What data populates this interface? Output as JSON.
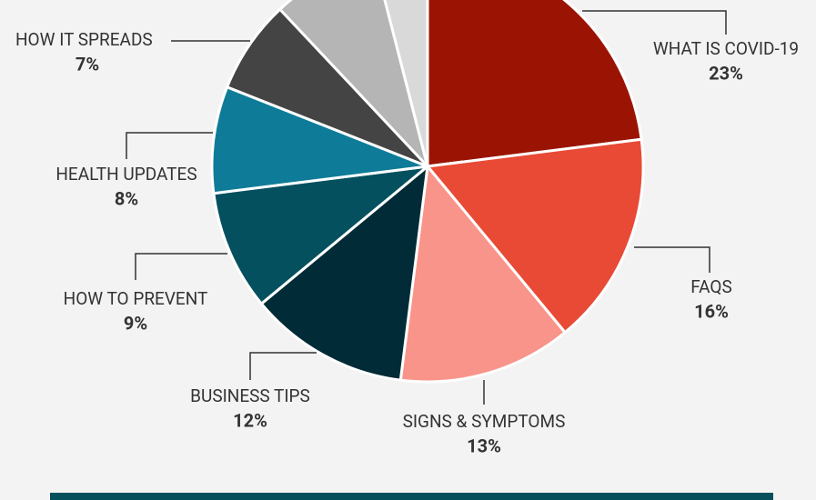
{
  "chart_data": {
    "type": "pie",
    "categories": [
      "WHAT IS COVID-19",
      "FAQS",
      "SIGNS & SYMPTOMS",
      "BUSINESS TIPS",
      "HOW TO PREVENT",
      "HEALTH UPDATES",
      "HOW IT SPREADS",
      null,
      null
    ],
    "values": [
      23,
      16,
      13,
      12,
      9,
      8,
      7,
      8,
      4
    ],
    "value_labels": [
      "23%",
      "16%",
      "13%",
      "12%",
      "9%",
      "8%",
      "7%",
      null,
      null
    ],
    "colors": [
      "#9b1403",
      "#e84a35",
      "#f9948a",
      "#012b36",
      "#05505f",
      "#0e7c99",
      "#444444",
      "#b5b5b5",
      "#d9d9d9"
    ]
  }
}
